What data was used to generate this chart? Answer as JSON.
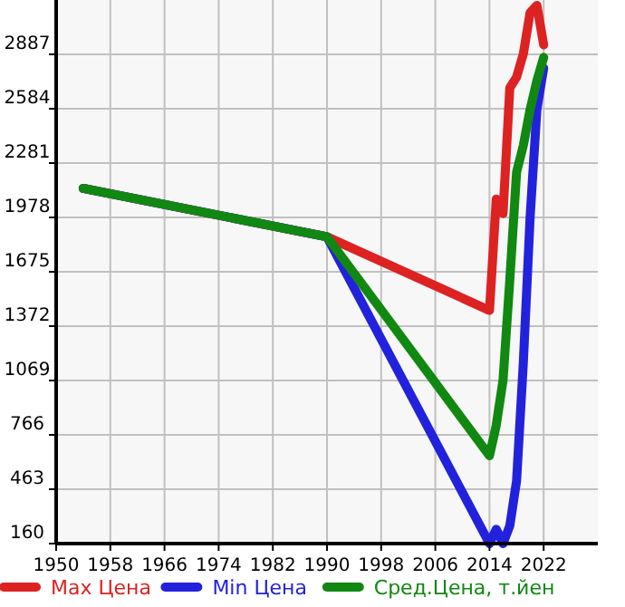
{
  "chart_data": {
    "type": "line",
    "x": [
      1954,
      1990,
      2014,
      2015,
      2016,
      2017,
      2018,
      2019,
      2020,
      2021,
      2022
    ],
    "series": [
      {
        "name": "Max Цена",
        "color": "#dd2222",
        "values": [
          2140,
          1870,
          1460,
          2080,
          2000,
          2700,
          2760,
          2890,
          3120,
          3160,
          2940
        ]
      },
      {
        "name": "Min Цена",
        "color": "#2222dd",
        "values": [
          2140,
          1870,
          160,
          240,
          160,
          260,
          510,
          1170,
          1980,
          2580,
          2810
        ]
      },
      {
        "name": "Сред.Цена, т.йен",
        "color": "#118811",
        "values": [
          2140,
          1870,
          650,
          820,
          1070,
          1630,
          2230,
          2380,
          2580,
          2740,
          2870
        ]
      }
    ],
    "xlim": [
      1950,
      2030
    ],
    "xticks": [
      1950,
      1958,
      1966,
      1974,
      1982,
      1990,
      1998,
      2006,
      2014,
      2022
    ],
    "ylim": [
      160,
      3190
    ],
    "yticks": [
      160,
      463,
      766,
      1069,
      1372,
      1675,
      1978,
      2281,
      2584,
      2887
    ],
    "grid": true,
    "legend": "bottom",
    "marker": "none",
    "line_style": "solid"
  }
}
